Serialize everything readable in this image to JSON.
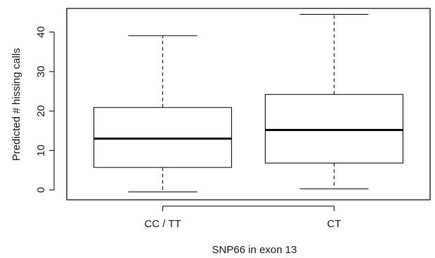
{
  "chart_data": {
    "type": "boxplot",
    "title": "",
    "xlabel": "SNP66 in exon 13",
    "ylabel": "Predicted # hissing calls",
    "ylim": [
      -2.5,
      46
    ],
    "yticks": [
      0,
      10,
      20,
      30,
      40
    ],
    "categories": [
      "CC / TT",
      "CT"
    ],
    "boxes": [
      {
        "category": "CC / TT",
        "whisker_low": -0.5,
        "q1": 5.7,
        "median": 13.0,
        "q3": 20.9,
        "whisker_high": 39.1
      },
      {
        "category": "CT",
        "whisker_low": 0.3,
        "q1": 6.8,
        "median": 15.2,
        "q3": 24.2,
        "whisker_high": 44.5
      }
    ],
    "grid": false,
    "colors": {
      "box_fill": "#ffffff",
      "stroke": "#000000"
    }
  }
}
